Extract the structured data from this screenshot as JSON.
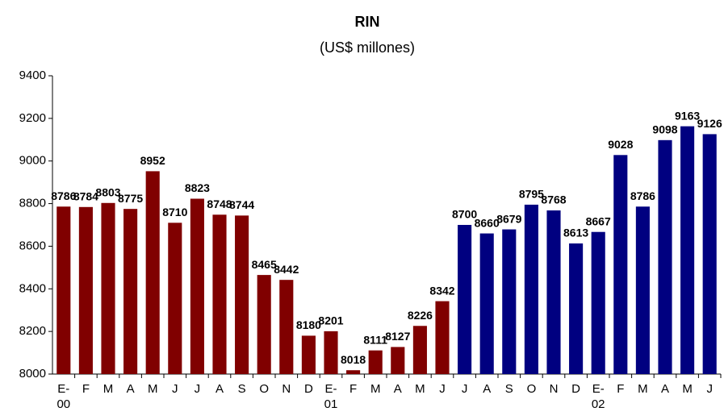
{
  "chart_data": {
    "type": "bar",
    "title": "RIN",
    "subtitle": "(US$ millones)",
    "categories": [
      "E-\n00",
      "F",
      "M",
      "A",
      "M",
      "J",
      "J",
      "A",
      "S",
      "O",
      "N",
      "D",
      "E-\n01",
      "F",
      "M",
      "A",
      "M",
      "J",
      "J",
      "A",
      "S",
      "O",
      "N",
      "D",
      "E-\n02",
      "F",
      "M",
      "A",
      "M",
      "J"
    ],
    "series": [
      {
        "color": "#800000",
        "values": [
          8786,
          8784,
          8803,
          8775,
          8952,
          8710,
          8823,
          8748,
          8744,
          8465,
          8442,
          8180,
          8201,
          8018,
          8111,
          8127,
          8226,
          8342,
          null,
          null,
          null,
          null,
          null,
          null,
          null,
          null,
          null,
          null,
          null,
          null
        ]
      },
      {
        "color": "#000080",
        "values": [
          null,
          null,
          null,
          null,
          null,
          null,
          null,
          null,
          null,
          null,
          null,
          null,
          null,
          null,
          null,
          null,
          null,
          null,
          8700,
          8660,
          8679,
          8795,
          8768,
          8613,
          8667,
          9028,
          8786,
          9098,
          9163,
          9126
        ]
      }
    ],
    "ylim": [
      8000,
      9400
    ],
    "yticks": [
      8000,
      8200,
      8400,
      8600,
      8800,
      9000,
      9200,
      9400
    ],
    "grid": false
  }
}
